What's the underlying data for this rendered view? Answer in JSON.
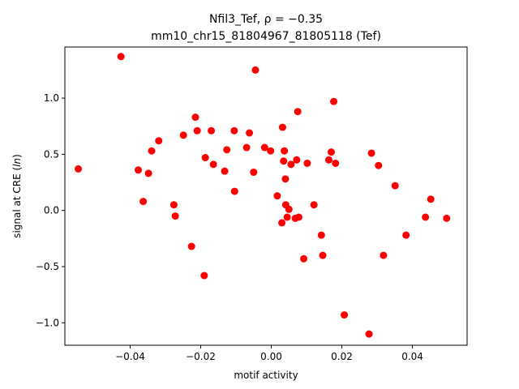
{
  "chart_data": {
    "type": "scatter",
    "title_line1_prefix": "Nfil3_Tef, ",
    "title_line1_rho": "ρ = −0.35",
    "title_line2": "mm10_chr15_81804967_81805118 (Tef)",
    "xlabel": "motif activity",
    "ylabel": "signal at CRE (",
    "ylabel_italic": "ln",
    "ylabel_end": ")",
    "xlim": [
      -0.0585,
      0.0555
    ],
    "ylim": [
      -1.2,
      1.455
    ],
    "x_ticks": [
      -0.04,
      -0.02,
      0.0,
      0.02,
      0.04
    ],
    "x_tick_labels": [
      "−0.04",
      "−0.02",
      "0.00",
      "0.02",
      "0.04"
    ],
    "y_ticks": [
      -1.0,
      -0.5,
      0.0,
      0.5,
      1.0
    ],
    "y_tick_labels": [
      "−1.0",
      "−0.5",
      "0.0",
      "0.5",
      "1.0"
    ],
    "grid": false,
    "marker_color": "#ff0000",
    "points": [
      {
        "x": -0.0547,
        "y": 0.37
      },
      {
        "x": -0.0426,
        "y": 1.37
      },
      {
        "x": -0.0377,
        "y": 0.36
      },
      {
        "x": -0.0363,
        "y": 0.08
      },
      {
        "x": -0.0348,
        "y": 0.33
      },
      {
        "x": -0.0339,
        "y": 0.53
      },
      {
        "x": -0.0319,
        "y": 0.62
      },
      {
        "x": -0.0276,
        "y": 0.05
      },
      {
        "x": -0.0272,
        "y": -0.05
      },
      {
        "x": -0.0249,
        "y": 0.67
      },
      {
        "x": -0.0226,
        "y": -0.32
      },
      {
        "x": -0.0215,
        "y": 0.83
      },
      {
        "x": -0.021,
        "y": 0.71
      },
      {
        "x": -0.019,
        "y": -0.58
      },
      {
        "x": -0.0187,
        "y": 0.47
      },
      {
        "x": -0.017,
        "y": 0.71
      },
      {
        "x": -0.0164,
        "y": 0.41
      },
      {
        "x": -0.0132,
        "y": 0.35
      },
      {
        "x": -0.0126,
        "y": 0.54
      },
      {
        "x": -0.0105,
        "y": 0.71
      },
      {
        "x": -0.0104,
        "y": 0.17
      },
      {
        "x": -0.007,
        "y": 0.56
      },
      {
        "x": -0.0062,
        "y": 0.69
      },
      {
        "x": -0.005,
        "y": 0.34
      },
      {
        "x": -0.0045,
        "y": 1.25
      },
      {
        "x": -0.0019,
        "y": 0.56
      },
      {
        "x": -0.0002,
        "y": 0.53
      },
      {
        "x": 0.0017,
        "y": 0.13
      },
      {
        "x": 0.003,
        "y": -0.11
      },
      {
        "x": 0.0032,
        "y": 0.74
      },
      {
        "x": 0.0035,
        "y": 0.44
      },
      {
        "x": 0.0037,
        "y": 0.53
      },
      {
        "x": 0.004,
        "y": 0.28
      },
      {
        "x": 0.0041,
        "y": 0.05
      },
      {
        "x": 0.0045,
        "y": -0.06
      },
      {
        "x": 0.005,
        "y": 0.01
      },
      {
        "x": 0.0056,
        "y": 0.41
      },
      {
        "x": 0.0068,
        "y": -0.07
      },
      {
        "x": 0.0072,
        "y": 0.45
      },
      {
        "x": 0.0075,
        "y": 0.88
      },
      {
        "x": 0.0078,
        "y": -0.06
      },
      {
        "x": 0.0092,
        "y": -0.43
      },
      {
        "x": 0.0102,
        "y": 0.42
      },
      {
        "x": 0.0121,
        "y": 0.05
      },
      {
        "x": 0.0142,
        "y": -0.22
      },
      {
        "x": 0.0146,
        "y": -0.4
      },
      {
        "x": 0.0163,
        "y": 0.45
      },
      {
        "x": 0.017,
        "y": 0.52
      },
      {
        "x": 0.0177,
        "y": 0.97
      },
      {
        "x": 0.0182,
        "y": 0.42
      },
      {
        "x": 0.0207,
        "y": -0.93
      },
      {
        "x": 0.0277,
        "y": -1.1
      },
      {
        "x": 0.0284,
        "y": 0.51
      },
      {
        "x": 0.0304,
        "y": 0.4
      },
      {
        "x": 0.0318,
        "y": -0.4
      },
      {
        "x": 0.0351,
        "y": 0.22
      },
      {
        "x": 0.0382,
        "y": -0.22
      },
      {
        "x": 0.0437,
        "y": -0.06
      },
      {
        "x": 0.0452,
        "y": 0.1
      },
      {
        "x": 0.0497,
        "y": -0.07
      }
    ]
  }
}
